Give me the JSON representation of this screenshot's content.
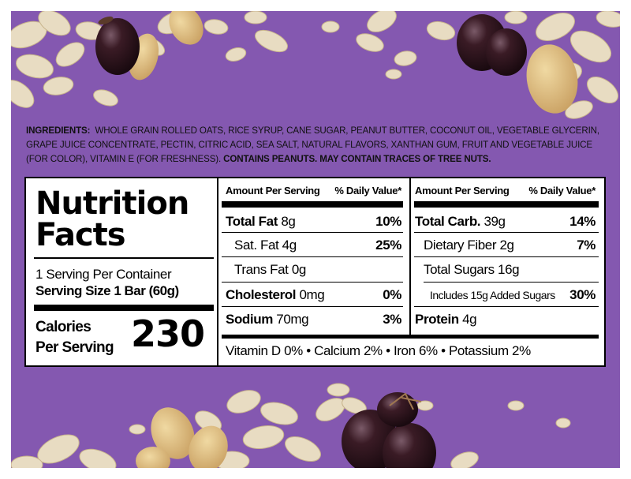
{
  "ingredients": {
    "label": "INGREDIENTS:",
    "text": "WHOLE GRAIN ROLLED OATS, RICE SYRUP, CANE SUGAR, PEANUT BUTTER, COCONUT OIL, VEGETABLE GLYCERIN, GRAPE JUICE CONCENTRATE, PECTIN, CITRIC ACID, SEA SALT, NATURAL FLAVORS, XANTHAN GUM, FRUIT AND VEGETABLE JUICE (FOR COLOR), VITAMIN E (FOR FRESHNESS).",
    "allergen": "CONTAINS PEANUTS. MAY CONTAIN TRACES OF TREE NUTS."
  },
  "nutrition": {
    "title_line1": "Nutrition",
    "title_line2": "Facts",
    "servings_per_container": "1 Serving Per Container",
    "serving_size": "Serving Size 1 Bar (60g)",
    "calories_label_1": "Calories",
    "calories_label_2": "Per Serving",
    "calories_value": "230",
    "header_amount": "Amount Per Serving",
    "header_dv": "% Daily Value*",
    "left_rows": [
      {
        "name": "Total Fat",
        "amount": "8g",
        "dv": "10%"
      },
      {
        "name": "Sat. Fat",
        "amount": "4g",
        "dv": "25%"
      },
      {
        "name": "Trans Fat",
        "amount": "0g",
        "dv": ""
      },
      {
        "name": "Cholesterol",
        "amount": "0mg",
        "dv": "0%"
      },
      {
        "name": "Sodium",
        "amount": "70mg",
        "dv": "3%"
      }
    ],
    "right_rows": [
      {
        "name": "Total Carb.",
        "amount": "39g",
        "dv": "14%"
      },
      {
        "name": "Dietary Fiber",
        "amount": "2g",
        "dv": "7%"
      },
      {
        "name": "Total Sugars",
        "amount": "16g",
        "dv": ""
      },
      {
        "name": "Includes 15g Added Sugars",
        "amount": "",
        "dv": "30%"
      },
      {
        "name": "Protein",
        "amount": "4g",
        "dv": ""
      }
    ],
    "micronutrients": "Vitamin D 0% • Calcium 2% • Iron 6% • Potassium 2%"
  },
  "colors": {
    "background": "#8458b0",
    "label_background": "#ffffff",
    "text": "#000000"
  }
}
